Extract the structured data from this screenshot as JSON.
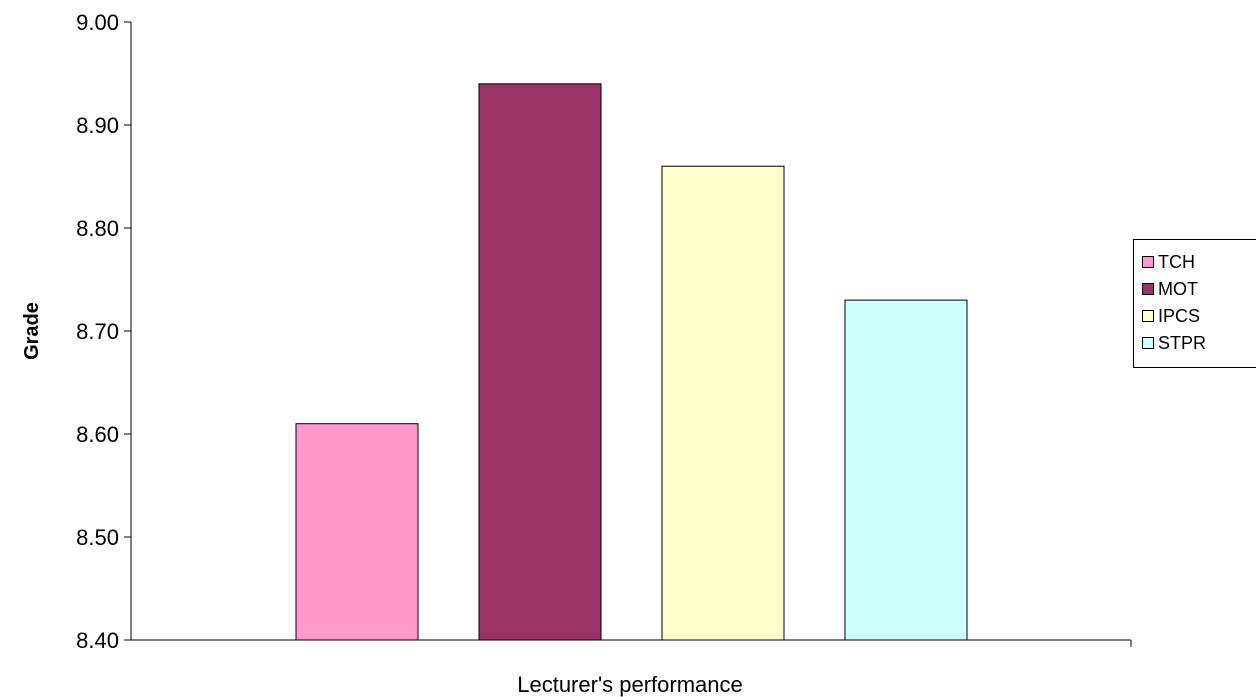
{
  "chart_data": {
    "type": "bar",
    "title": "",
    "xlabel": "Lecturer's performance",
    "ylabel": "Grade",
    "ylim": [
      8.4,
      9.0
    ],
    "yticks": [
      "8.40",
      "8.50",
      "8.60",
      "8.70",
      "8.80",
      "8.90",
      "9.00"
    ],
    "grid": false,
    "legend_position": "right",
    "series": [
      {
        "name": "TCH",
        "value": 8.61,
        "color": "#ff99cc"
      },
      {
        "name": "MOT",
        "value": 8.94,
        "color": "#993366"
      },
      {
        "name": "IPCS",
        "value": 8.86,
        "color": "#ffffcc"
      },
      {
        "name": "STPR",
        "value": 8.73,
        "color": "#ccffff"
      }
    ]
  }
}
